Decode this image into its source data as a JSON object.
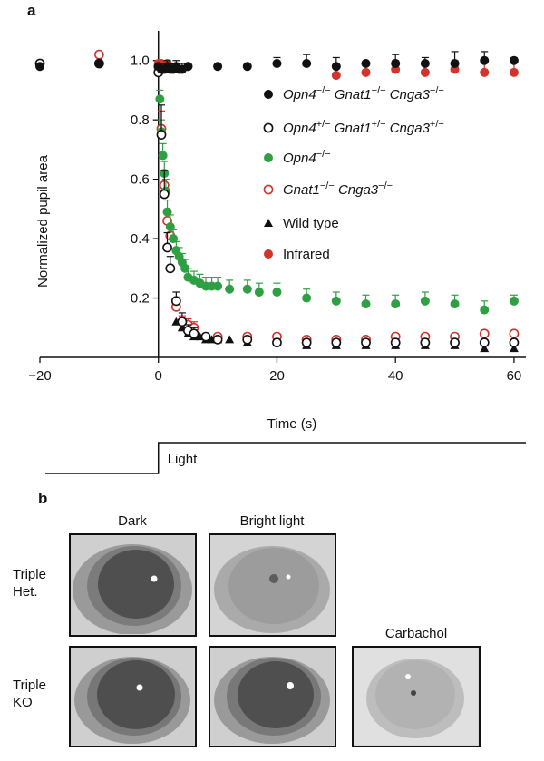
{
  "panel_a": {
    "letter": "a",
    "chart_data": {
      "type": "scatter",
      "xlabel": "Time (s)",
      "ylabel": "Normalized pupil area",
      "xlim": [
        -20,
        62
      ],
      "ylim": [
        0,
        1.1
      ],
      "xticks": [
        -20,
        0,
        20,
        40,
        60
      ],
      "yticks": [
        0.2,
        0.4,
        0.6,
        0.8,
        1.0
      ],
      "xtick_labels": [
        "−20",
        "0",
        "20",
        "40",
        "60"
      ],
      "ytick_labels": [
        "0.2",
        "0.4",
        "0.6",
        "0.8",
        "1.0"
      ],
      "legend_position": "right",
      "stimulus": {
        "label": "Light",
        "onset": 0
      },
      "series": [
        {
          "legend_main": "Opn4",
          "legend_sup": "−/−",
          "legend_main2": " Gnat1",
          "legend_sup2": "−/−",
          "legend_main3": " Cnga3",
          "legend_sup3": "−/−",
          "marker": "filled-circle",
          "color": "#111111",
          "x": [
            -20,
            -10,
            0,
            0.5,
            1,
            1.5,
            2,
            2.5,
            3,
            3.5,
            4,
            5,
            10,
            15,
            20,
            25,
            30,
            35,
            40,
            45,
            50,
            55,
            60
          ],
          "y": [
            0.98,
            0.99,
            0.98,
            0.97,
            0.97,
            0.98,
            0.97,
            0.97,
            0.98,
            0.97,
            0.97,
            0.98,
            0.98,
            0.98,
            0.99,
            0.99,
            0.98,
            0.99,
            0.99,
            0.99,
            0.99,
            1.0,
            1.0
          ],
          "err": [
            0,
            0,
            0,
            0.02,
            0.02,
            0.02,
            0.02,
            0.02,
            0.02,
            0.02,
            0.02,
            0.01,
            0,
            0,
            0.02,
            0.03,
            0.03,
            0,
            0.03,
            0.02,
            0.04,
            0.03,
            0
          ]
        },
        {
          "legend_main": "Opn4",
          "legend_sup": "+/−",
          "legend_main2": " Gnat1",
          "legend_sup2": "+/−",
          "legend_main3": " Cnga3",
          "legend_sup3": "+/−",
          "marker": "open-circle",
          "color": "#111111",
          "x": [
            -20,
            -10,
            0,
            0.5,
            1,
            1.5,
            2,
            3,
            4,
            5,
            6,
            8,
            10,
            15,
            20,
            25,
            30,
            35,
            40,
            45,
            50,
            55,
            60
          ],
          "y": [
            0.99,
            0.99,
            0.96,
            0.75,
            0.55,
            0.37,
            0.3,
            0.19,
            0.12,
            0.09,
            0.08,
            0.07,
            0.06,
            0.06,
            0.05,
            0.05,
            0.05,
            0.05,
            0.05,
            0.05,
            0.05,
            0.05,
            0.05
          ],
          "err": [
            0,
            0,
            0.02,
            0.1,
            0.08,
            0.05,
            0.04,
            0.03,
            0.03,
            0.02,
            0.02,
            0.01,
            0.01,
            0.01,
            0.01,
            0.01,
            0.01,
            0.01,
            0.01,
            0.01,
            0.01,
            0.01,
            0.01
          ]
        },
        {
          "legend_main": "Opn4",
          "legend_sup": "−/−",
          "legend_main2": "",
          "legend_sup2": "",
          "legend_main3": "",
          "legend_sup3": "",
          "marker": "filled-circle",
          "color": "#2ea043",
          "x": [
            0,
            0.25,
            0.5,
            0.75,
            1,
            1.25,
            1.5,
            2,
            2.5,
            3,
            3.5,
            4,
            4.5,
            5,
            6,
            7,
            8,
            9,
            10,
            12,
            15,
            17,
            20,
            25,
            30,
            35,
            40,
            45,
            50,
            55,
            60
          ],
          "y": [
            0.97,
            0.87,
            0.76,
            0.68,
            0.62,
            0.56,
            0.49,
            0.44,
            0.4,
            0.36,
            0.34,
            0.32,
            0.3,
            0.27,
            0.26,
            0.25,
            0.24,
            0.24,
            0.24,
            0.23,
            0.23,
            0.22,
            0.22,
            0.2,
            0.19,
            0.18,
            0.18,
            0.19,
            0.18,
            0.16,
            0.19
          ],
          "err": [
            0.02,
            0.03,
            0.04,
            0.04,
            0.04,
            0.04,
            0.04,
            0.04,
            0.03,
            0.03,
            0.03,
            0.03,
            0.03,
            0.03,
            0.03,
            0.03,
            0.03,
            0.03,
            0.03,
            0.03,
            0.03,
            0.03,
            0.03,
            0.03,
            0.03,
            0.03,
            0.03,
            0.03,
            0.03,
            0.03,
            0.02
          ]
        },
        {
          "legend_main": "Gnat1",
          "legend_sup": "−/−",
          "legend_main2": " Cnga3",
          "legend_sup2": "−/−",
          "legend_main3": "",
          "legend_sup3": "",
          "marker": "open-circle",
          "color": "#d0342c",
          "x": [
            -10,
            0,
            0.5,
            1,
            1.5,
            2,
            3,
            4,
            5,
            6,
            10,
            15,
            20,
            25,
            30,
            35,
            40,
            45,
            50,
            55,
            60
          ],
          "y": [
            1.02,
            0.98,
            0.77,
            0.58,
            0.46,
            0.41,
            0.17,
            0.12,
            0.11,
            0.1,
            0.07,
            0.07,
            0.07,
            0.06,
            0.06,
            0.06,
            0.07,
            0.07,
            0.07,
            0.08,
            0.08
          ],
          "err": [
            0,
            0.02,
            0.06,
            0.05,
            0.04,
            0.03,
            0.02,
            0.02,
            0.02,
            0.02,
            0.01,
            0.01,
            0.01,
            0.01,
            0.01,
            0.01,
            0.01,
            0.01,
            0.01,
            0.01,
            0.01
          ]
        },
        {
          "legend_main": "Wild type",
          "legend_sup": "",
          "legend_main2": "",
          "legend_sup2": "",
          "legend_main3": "",
          "legend_sup3": "",
          "marker": "filled-triangle",
          "color": "#111111",
          "x": [
            3,
            4,
            5,
            6,
            7,
            8,
            9,
            10,
            12,
            15,
            20,
            25,
            30,
            35,
            40,
            45,
            50,
            55,
            60
          ],
          "y": [
            0.12,
            0.1,
            0.08,
            0.07,
            0.07,
            0.06,
            0.06,
            0.06,
            0.06,
            0.05,
            0.05,
            0.04,
            0.04,
            0.04,
            0.04,
            0.04,
            0.04,
            0.03,
            0.03
          ],
          "err": []
        },
        {
          "legend_main": "Infrared",
          "legend_sup": "",
          "legend_main2": "",
          "legend_sup2": "",
          "legend_main3": "",
          "legend_sup3": "",
          "marker": "filled-circle",
          "color": "#d0342c",
          "x": [
            -20,
            -10,
            0,
            0.5,
            1,
            1.5,
            2,
            5,
            30,
            35,
            40,
            45,
            50,
            55,
            60
          ],
          "y": [
            0.99,
            1.02,
            0.99,
            0.99,
            0.98,
            0.99,
            0.98,
            0.98,
            0.95,
            0.96,
            0.97,
            0.96,
            0.97,
            0.96,
            0.96
          ],
          "err": [
            0,
            0,
            0,
            0,
            0,
            0,
            0,
            0,
            0.03,
            0,
            0.03,
            0.03,
            0.03,
            0.05,
            0.05
          ]
        }
      ]
    }
  },
  "panel_b": {
    "letter": "b",
    "column_labels": [
      "Dark",
      "Bright light",
      "Carbachol"
    ],
    "row_labels": [
      {
        "line1": "Triple",
        "line2": "Het."
      },
      {
        "line1": "Triple",
        "line2": "KO"
      }
    ]
  }
}
